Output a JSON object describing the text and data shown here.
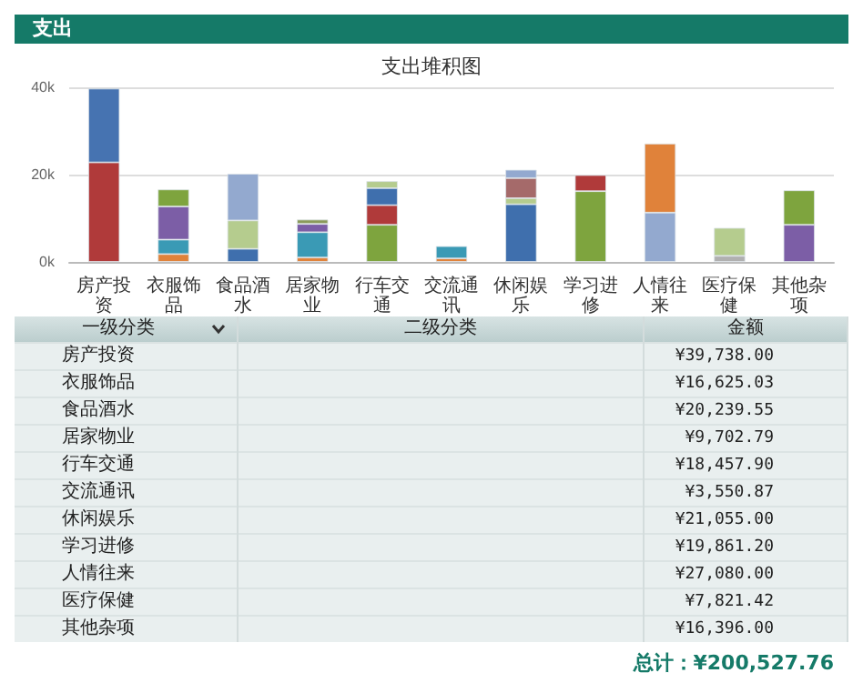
{
  "chart_data": {
    "type": "bar",
    "title": "支出堆积图",
    "stacked": true,
    "grid": "y",
    "categories": [
      "房产投资",
      "衣服饰品",
      "食品酒水",
      "居家物业",
      "行车交通",
      "交流通讯",
      "休闲娱乐",
      "学习进修",
      "人情往来",
      "医疗保健",
      "其他杂项"
    ],
    "ylim": [
      0,
      40000
    ],
    "yticks": [
      {
        "value": 0,
        "label": "0k"
      },
      {
        "value": 20000,
        "label": "20k"
      },
      {
        "value": 40000,
        "label": "40k"
      }
    ],
    "series": [
      {
        "values": [
          22800,
          1800,
          3000,
          1000,
          8500,
          800,
          13200,
          16200,
          11300,
          1400,
          8500
        ],
        "colors": [
          "#b03a3a",
          "#e0823a",
          "#3f6fad",
          "#e0823a",
          "#7ea43e",
          "#e0823a",
          "#3f6fad",
          "#7ea43e",
          "#93a9cf",
          "#b0b0b0",
          "#7c5ea6"
        ]
      },
      {
        "values": [
          16900,
          3300,
          6500,
          5800,
          4500,
          2800,
          1400,
          3700,
          15800,
          6400,
          7900
        ],
        "colors": [
          "#4673b1",
          "#3a9ab5",
          "#b5cc8e",
          "#3a9ab5",
          "#b03a3a",
          "#3a9ab5",
          "#b5cc8e",
          "#b03a3a",
          "#e0823a",
          "#b5cc8e",
          "#7ea43e"
        ]
      },
      {
        "values": [
          null,
          7600,
          10700,
          1900,
          3900,
          null,
          4600,
          null,
          null,
          null,
          null
        ],
        "colors": [
          null,
          "#7c5ea6",
          "#93a9cf",
          "#7c5ea6",
          "#3f6fad",
          null,
          "#a56a6a",
          null,
          null,
          null,
          null
        ]
      },
      {
        "values": [
          null,
          3900,
          null,
          1000,
          1600,
          null,
          1900,
          null,
          null,
          null,
          null
        ],
        "colors": [
          null,
          "#7ea43e",
          null,
          "#8a9a5b",
          "#b5cc8e",
          null,
          "#93a9cf",
          null,
          null,
          null,
          null
        ]
      }
    ],
    "annotations": [
      "支出",
      "一级分类",
      "二级分类",
      "金额",
      "总计：¥200,527.76",
      "¥39,738.00",
      "¥16,625.03",
      "¥20,239.55",
      "¥9,702.79",
      "¥18,457.90",
      "¥3,550.87",
      "¥21,055.00",
      "¥19,861.20",
      "¥27,080.00",
      "¥7,821.42",
      "¥16,396.00"
    ]
  }
}
